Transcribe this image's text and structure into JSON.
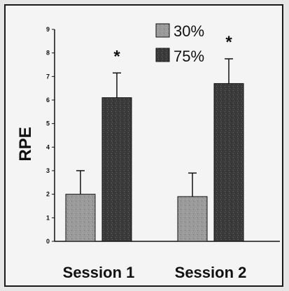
{
  "chart_data": {
    "type": "bar",
    "title": "",
    "xlabel": "",
    "ylabel": "RPE",
    "ylim": [
      0,
      9
    ],
    "yticks": [
      "0",
      "1",
      "2",
      "3",
      "4",
      "5",
      "6",
      "7",
      "8",
      "9"
    ],
    "categories": [
      "Session 1",
      "Session 2"
    ],
    "series": [
      {
        "name": "30%",
        "values": [
          2.0,
          1.9
        ],
        "error": [
          1.0,
          1.0
        ],
        "color": "#9a9a9a"
      },
      {
        "name": "75%",
        "values": [
          6.1,
          6.7
        ],
        "error": [
          1.05,
          1.05
        ],
        "color": "#3a3a3a"
      }
    ],
    "significance": [
      "*",
      "*"
    ],
    "legend_position": "top-right",
    "grid": false
  }
}
